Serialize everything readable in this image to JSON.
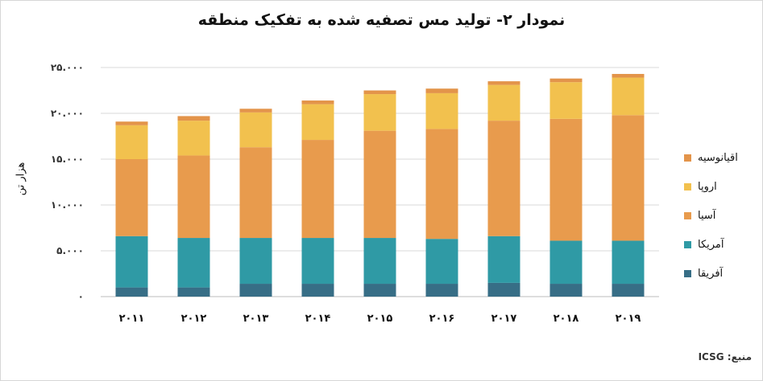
{
  "chart_data": {
    "type": "bar",
    "stacked": true,
    "title": "نمودار ۲- تولید مس تصفیه شده به تفکیک منطقه",
    "ylabel": "هزار تن",
    "xlabel": "",
    "ylim": [
      0,
      25000
    ],
    "yticks": [
      0,
      5000,
      10000,
      15000,
      20000,
      25000
    ],
    "ytick_labels": [
      "۰",
      "۵.۰۰۰",
      "۱۰.۰۰۰",
      "۱۵.۰۰۰",
      "۲۰.۰۰۰",
      "۲۵.۰۰۰"
    ],
    "categories": [
      "۲۰۱۱",
      "۲۰۱۲",
      "۲۰۱۳",
      "۲۰۱۴",
      "۲۰۱۵",
      "۲۰۱۶",
      "۲۰۱۷",
      "۲۰۱۸",
      "۲۰۱۹"
    ],
    "grid": true,
    "legend_position": "right",
    "series": [
      {
        "name": "آفریقا",
        "color": "#376e86",
        "values": [
          1000,
          1000,
          1400,
          1400,
          1400,
          1400,
          1500,
          1400,
          1400
        ]
      },
      {
        "name": "آمریکا",
        "color": "#2f9aa5",
        "values": [
          5600,
          5400,
          5000,
          5000,
          5000,
          4900,
          5100,
          4700,
          4700
        ]
      },
      {
        "name": "آسیا",
        "color": "#e89b4d",
        "values": [
          8400,
          9000,
          9900,
          10700,
          11700,
          12000,
          12600,
          13300,
          13700
        ]
      },
      {
        "name": "اروپا",
        "color": "#f2c14e",
        "values": [
          3700,
          3800,
          3800,
          3900,
          4000,
          3900,
          3900,
          4000,
          4100
        ]
      },
      {
        "name": "اقیانوسیه",
        "color": "#e3944a",
        "values": [
          400,
          500,
          400,
          400,
          400,
          500,
          400,
          400,
          400
        ]
      }
    ]
  },
  "source": "منبع: ICSG"
}
